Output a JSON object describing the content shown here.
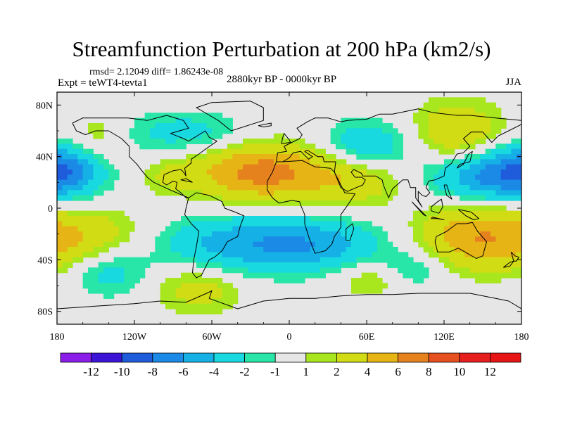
{
  "title": "Streamfunction Perturbation at 200 hPa (km2/s)",
  "stats": "rmsd= 2.12049 diff= 1.86243e-08",
  "experiment": "Expt = teWT4-tevta1",
  "period": "2880kyr BP - 0000kyr BP",
  "season": "JJA",
  "chart_data": {
    "type": "heatmap",
    "projection": "cylindrical-equidistant",
    "xlim": [
      -180,
      180
    ],
    "ylim": [
      -90,
      90
    ],
    "x_ticks": [
      {
        "value": -180,
        "label": "180"
      },
      {
        "value": -120,
        "label": "120W"
      },
      {
        "value": -60,
        "label": "60W"
      },
      {
        "value": 0,
        "label": "0"
      },
      {
        "value": 60,
        "label": "60E"
      },
      {
        "value": 120,
        "label": "120E"
      },
      {
        "value": 180,
        "label": "180"
      }
    ],
    "y_ticks": [
      {
        "value": 80,
        "label": "80N"
      },
      {
        "value": 40,
        "label": "40N"
      },
      {
        "value": 0,
        "label": "0"
      },
      {
        "value": -40,
        "label": "40S"
      },
      {
        "value": -80,
        "label": "80S"
      }
    ],
    "colorbar": {
      "levels": [
        -12,
        -10,
        -8,
        -6,
        -4,
        -2,
        -1,
        1,
        2,
        4,
        6,
        8,
        10,
        12
      ],
      "colors": [
        "#8a1ee8",
        "#3c14d8",
        "#1e5cdc",
        "#1a8ae6",
        "#14b0e6",
        "#18d8e0",
        "#28e6a8",
        "#e6e6e6",
        "#a8e61e",
        "#d2dc14",
        "#e6b414",
        "#e6821e",
        "#e6501e",
        "#e61e1e",
        "#e61414"
      ]
    },
    "field_centers": [
      {
        "lon": -20,
        "lat": 28,
        "value": 7.0,
        "rlon": 40,
        "rlat": 16
      },
      {
        "lon": 55,
        "lat": 22,
        "value": 3.0,
        "rlon": 25,
        "rlat": 14
      },
      {
        "lon": 130,
        "lat": 58,
        "value": 4.0,
        "rlon": 25,
        "rlat": 18
      },
      {
        "lon": 140,
        "lat": -22,
        "value": 5.0,
        "rlon": 30,
        "rlat": 18
      },
      {
        "lon": -160,
        "lat": -25,
        "value": 4.0,
        "rlon": 35,
        "rlat": 18
      },
      {
        "lon": -70,
        "lat": -62,
        "value": 3.0,
        "rlon": 25,
        "rlat": 14
      },
      {
        "lon": -150,
        "lat": 55,
        "value": 2.0,
        "rlon": 15,
        "rlat": 14
      },
      {
        "lon": 65,
        "lat": -55,
        "value": 2.5,
        "rlon": 20,
        "rlat": 10
      },
      {
        "lon": -95,
        "lat": 25,
        "value": 1.5,
        "rlon": 15,
        "rlat": 10
      },
      {
        "lon": 160,
        "lat": 25,
        "value": -7.0,
        "rlon": 35,
        "rlat": 14
      },
      {
        "lon": 60,
        "lat": 48,
        "value": -4.0,
        "rlon": 25,
        "rlat": 14
      },
      {
        "lon": -80,
        "lat": 58,
        "value": -3.0,
        "rlon": 35,
        "rlat": 12
      },
      {
        "lon": -40,
        "lat": -28,
        "value": -5.0,
        "rlon": 45,
        "rlat": 16
      },
      {
        "lon": 25,
        "lat": -28,
        "value": -4.0,
        "rlon": 35,
        "rlat": 14
      },
      {
        "lon": -140,
        "lat": -48,
        "value": -3.5,
        "rlon": 22,
        "rlat": 14
      },
      {
        "lon": -175,
        "lat": 32,
        "value": -4.0,
        "rlon": 18,
        "rlat": 14
      },
      {
        "lon": 95,
        "lat": -48,
        "value": -2.5,
        "rlon": 20,
        "rlat": 12
      }
    ]
  }
}
